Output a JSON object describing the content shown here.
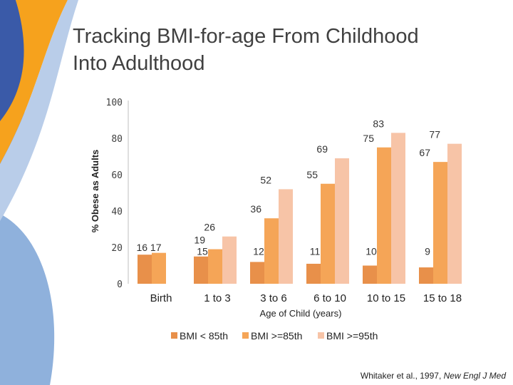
{
  "slide": {
    "title_line1": "Tracking BMI-for-age From Childhood",
    "title_line2": "Into Adulthood"
  },
  "citation": {
    "text": "Whitaker et al., 1997, ",
    "journal": "New Engl J Med"
  },
  "colors": {
    "series1": "#e8904a",
    "series2": "#f5a557",
    "series3": "#f7c4a7",
    "deco_blue_dark": "#3a5aa8",
    "deco_orange": "#f6a21d",
    "deco_blue_light": "#8fb1dc"
  },
  "chart_data": {
    "type": "bar",
    "title": "",
    "xlabel": "Age of Child (years)",
    "ylabel": "% Obese as Adults",
    "ylim": [
      0,
      100
    ],
    "yticks": [
      0,
      20,
      40,
      60,
      80,
      100
    ],
    "categories": [
      "Birth",
      "1 to 3",
      "3 to 6",
      "6 to 10",
      "10 to 15",
      "15 to 18"
    ],
    "series": [
      {
        "name": "BMI < 85th",
        "values": [
          16,
          15,
          12,
          11,
          10,
          9
        ],
        "labels": [
          "",
          "15",
          "12",
          "11",
          "10",
          "9"
        ]
      },
      {
        "name": "BMI >=85th",
        "values": [
          17,
          19,
          36,
          55,
          75,
          67
        ],
        "labels": [
          "16 17",
          "19",
          "36",
          "55",
          "75",
          "67"
        ]
      },
      {
        "name": "BMI >=95th",
        "values": [
          null,
          26,
          52,
          69,
          83,
          77
        ],
        "labels": [
          "",
          "26",
          "52",
          "69",
          "83",
          "77"
        ]
      }
    ],
    "legend_position": "bottom"
  }
}
